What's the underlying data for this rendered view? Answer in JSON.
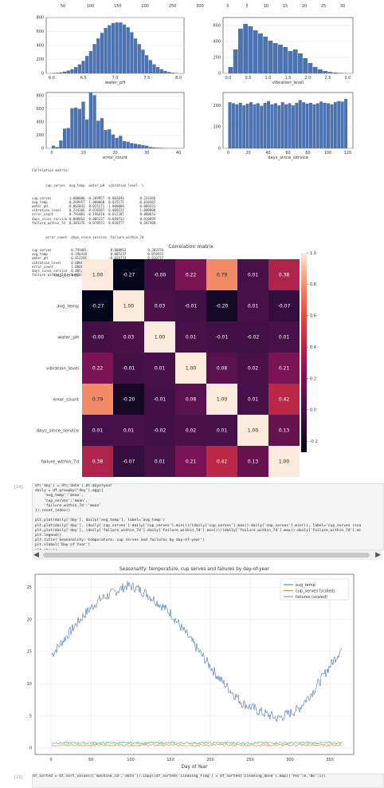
{
  "colors": {
    "bar": "#4c72b0",
    "temp": "#4c72b0",
    "cup": "#dd8452",
    "fail": "#55a868"
  },
  "hist_top": {
    "left_ticks": [
      "50",
      "100",
      "150",
      "200",
      "250",
      "300"
    ],
    "right_ticks": [
      "0",
      "5",
      "10",
      "15",
      "20",
      "25",
      "30"
    ]
  },
  "hist": [
    {
      "xlabel": "water_pH",
      "xticks": [
        "6.0",
        "6.5",
        "7.0",
        "7.5",
        "8.0"
      ],
      "yticks": [
        "0",
        "200",
        "400",
        "600",
        "800"
      ],
      "ylim": [
        0,
        800
      ],
      "values": [
        5,
        8,
        15,
        25,
        40,
        60,
        90,
        130,
        180,
        250,
        320,
        420,
        500,
        580,
        650,
        690,
        720,
        730,
        730,
        700,
        660,
        590,
        500,
        420,
        340,
        260,
        190,
        130,
        90,
        60,
        35,
        20,
        10,
        5
      ]
    },
    {
      "xlabel": "vibration_level",
      "xticks": [
        "0.0",
        "0.5",
        "1.0",
        "1.5",
        "2.0",
        "2.5",
        "3.0"
      ],
      "yticks": [
        "0",
        "200",
        "400",
        "600"
      ],
      "ylim": [
        0,
        700
      ],
      "values": [
        80,
        300,
        560,
        620,
        590,
        540,
        500,
        460,
        410,
        380,
        360,
        330,
        280,
        300,
        250,
        190,
        130,
        80,
        50,
        30,
        18,
        10,
        6,
        3
      ]
    },
    {
      "xlabel": "error_count",
      "xticks": [
        "0",
        "10",
        "20",
        "30",
        "40"
      ],
      "yticks": [
        "0",
        "200",
        "400",
        "600",
        "800"
      ],
      "ylim": [
        0,
        850
      ],
      "values": [
        40,
        20,
        120,
        300,
        310,
        610,
        620,
        600,
        710,
        440,
        850,
        810,
        420,
        460,
        280,
        290,
        210,
        160,
        190,
        110,
        100,
        80,
        70,
        60,
        50,
        40,
        20,
        15,
        10,
        8,
        5,
        3,
        2,
        1
      ]
    },
    {
      "xlabel": "days_since_service",
      "xticks": [
        "0",
        "20",
        "40",
        "60",
        "80",
        "100",
        "120"
      ],
      "yticks": [
        "0",
        "100",
        "200"
      ],
      "ylim": [
        0,
        260
      ],
      "values": [
        215,
        210,
        205,
        212,
        200,
        208,
        215,
        205,
        210,
        198,
        212,
        220,
        205,
        210,
        200,
        215,
        205,
        210,
        200,
        212,
        225,
        215,
        208,
        212,
        205,
        210,
        218,
        212,
        210,
        205,
        215,
        220,
        218,
        230
      ]
    }
  ],
  "corr_text": {
    "title": "Correlation matrix:",
    "block1_header": "       cup_serves  avg_temp  water_pH  vibration_level  \\",
    "block1": [
      "cup_serves         1.000000 -0.269957 -0.003841        0.224366",
      "avg_temp          -0.269957  1.000000  0.025171       -0.010387",
      "water_pH          -0.003841  0.025171  1.000000        0.009221",
      "vibration_level    0.224366 -0.010387  0.009221        1.000000",
      "error_count        0.791001 -0.196418 -0.012285        0.080653",
      "days_since_service 0.008862  0.005237 -0.020733        0.018095",
      "failure_within_7d  0.383376 -0.070551  0.010777        0.207408"
    ],
    "block2_header": "       error_count  days_since_service  failure_within_7d",
    "block2": [
      "cup_serves          0.791001            0.008862           0.383376",
      "avg_temp           -0.196418            0.005237          -0.070551",
      "water_pH           -0.012285           -0.020733           0.010777",
      "vibration_level     0.080653            0.018095           0.207408",
      "error_count         1.000000            0.005747           0.420785",
      "days_since_service  0.005747            1.000000           0.125625",
      "failure_within_7d   0.420785            0.125625           1.000000"
    ]
  },
  "chart_data": [
    {
      "type": "heatmap",
      "title": "Correlation matrix",
      "labels": [
        "cup_serves",
        "avg_temp",
        "water_pH",
        "vibration_level",
        "error_count",
        "days_since_service",
        "failure_within_7d"
      ],
      "values": [
        [
          1.0,
          -0.27,
          -0.0,
          0.22,
          0.79,
          0.01,
          0.38
        ],
        [
          -0.27,
          1.0,
          0.03,
          -0.01,
          -0.2,
          0.01,
          -0.07
        ],
        [
          -0.0,
          0.03,
          1.0,
          0.01,
          -0.01,
          -0.02,
          0.01
        ],
        [
          0.22,
          -0.01,
          0.01,
          1.0,
          0.08,
          0.02,
          0.21
        ],
        [
          0.79,
          -0.2,
          -0.01,
          0.08,
          1.0,
          0.01,
          0.42
        ],
        [
          0.01,
          0.01,
          -0.02,
          0.02,
          0.01,
          1.0,
          0.13
        ],
        [
          0.38,
          -0.07,
          0.01,
          0.21,
          0.42,
          0.13,
          1.0
        ]
      ],
      "cells": [
        [
          "1.00",
          "-0.27",
          "-0.00",
          "0.22",
          "0.79",
          "0.01",
          "0.38"
        ],
        [
          "-0.27",
          "1.00",
          "0.03",
          "-0.01",
          "-0.20",
          "0.01",
          "-0.07"
        ],
        [
          "-0.00",
          "0.03",
          "1.00",
          "0.01",
          "-0.01",
          "-0.02",
          "0.01"
        ],
        [
          "0.22",
          "-0.01",
          "0.01",
          "1.00",
          "0.08",
          "0.02",
          "0.21"
        ],
        [
          "0.79",
          "-0.20",
          "-0.01",
          "0.08",
          "1.00",
          "0.01",
          "0.42"
        ],
        [
          "0.01",
          "0.01",
          "-0.02",
          "0.02",
          "0.01",
          "1.00",
          "0.13"
        ],
        [
          "0.38",
          "-0.07",
          "0.01",
          "0.21",
          "0.42",
          "0.13",
          "1.00"
        ]
      ],
      "colorbar_ticks": [
        "1.0",
        "0.8",
        "0.6",
        "0.4",
        "0.2",
        "0.0",
        "-0.2"
      ],
      "vmin": -0.27,
      "vmax": 1.0
    },
    {
      "type": "line",
      "title": "Seasonality: temperature, cup serves and failures by day-of-year",
      "xlabel": "Day of Year",
      "ylabel": "",
      "xlim": [
        -20,
        380
      ],
      "ylim": [
        -1,
        27
      ],
      "xticks": [
        "0",
        "50",
        "100",
        "150",
        "200",
        "250",
        "300",
        "350"
      ],
      "yticks": [
        "0",
        "5",
        "10",
        "15",
        "20",
        "25"
      ],
      "legend": "top-right",
      "series": [
        {
          "name": "avg_temp",
          "anchors_x": [
            1,
            40,
            60,
            95,
            105,
            120,
            150,
            180,
            210,
            240,
            265,
            285,
            310,
            330,
            365
          ],
          "anchors_y": [
            14.5,
            20.5,
            23,
            25.2,
            25,
            24,
            21,
            16,
            11,
            7,
            5.5,
            4.6,
            6,
            9,
            15.5
          ]
        },
        {
          "name": "cup_serves (scaled)",
          "anchors_x": [
            1,
            365
          ],
          "anchors_y": [
            0.45,
            0.45
          ]
        },
        {
          "name": "failures (scaled)",
          "anchors_x": [
            1,
            365
          ],
          "anchors_y": [
            0.8,
            0.8
          ]
        }
      ]
    }
  ],
  "cells": {
    "prompt1": "[14]:",
    "code1": [
      "df['doy'] = df['date'].dt.dayofyear",
      "daily = df.groupby('doy').agg({",
      "    'avg_temp':'mean',",
      "    'cup_serves':'mean',",
      "    'failure_within_7d':'mean'",
      "}).reset_index()",
      "",
      "plt.plot(daily['doy'], daily['avg_temp'], label='avg_temp')",
      "plt.plot(daily['doy'], (daily['cup_serves']-daily['cup_serves'].min())/(daily['cup_serves'].max()-daily['cup_serves'].min()), label='cup_serves (sca",
      "plt.plot(daily['doy'], (daily['failure_within_7d']-daily['failure_within_7d'].min())/(daily['failure_within_7d'].max()-daily['failure_within_7d'].mi",
      "plt.legend()",
      "plt.title('Seasonality: temperature, cup serves and failures by day-of-year')",
      "plt.xlabel('Day of Year')",
      "plt.show()"
    ],
    "prompt2": "[15]:",
    "code2": [
      "df_sorted = df.sort_values(['machine_id','date']).copy()",
      "df_sorted['cleaning_flag'] = df_sorted['cleaning_done'].map({'Yes':0,'No':1})"
    ]
  }
}
